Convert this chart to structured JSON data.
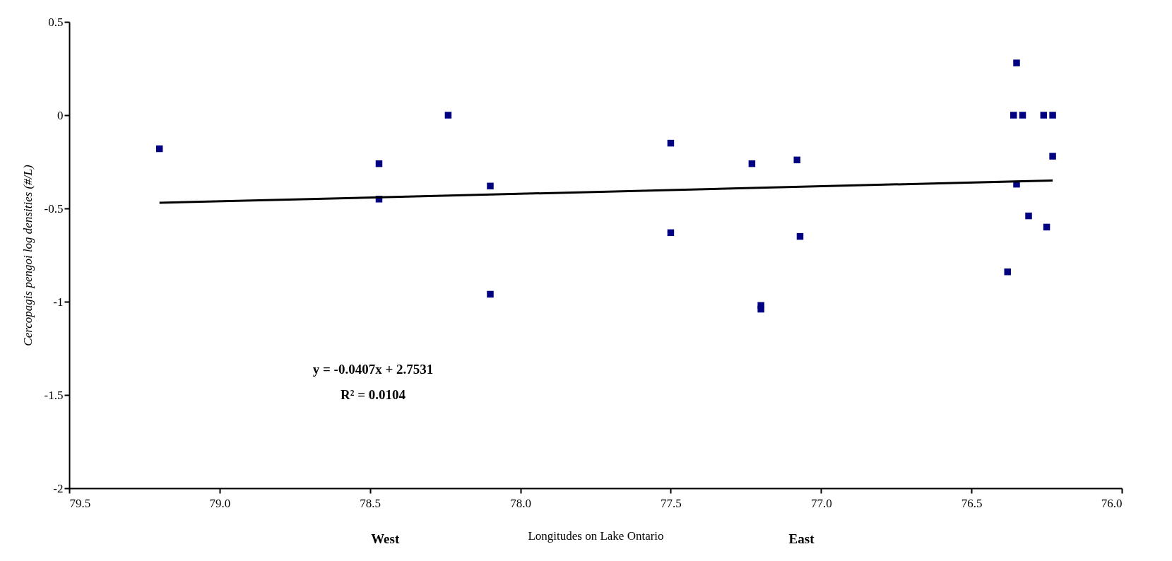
{
  "chart_data": {
    "type": "scatter",
    "xlabel": "Longitudes on Lake Ontario",
    "ylabel": "Cercopagis pengoi log densities (#/L)",
    "xlim": [
      79.5,
      76.0
    ],
    "xticks": [
      79.5,
      {
        "value": 79,
        "label": "79.0"
      },
      78.5,
      {
        "value": 78,
        "label": "78.0"
      },
      77.5,
      {
        "value": 77,
        "label": "77.0"
      },
      76.5,
      {
        "value": 76,
        "label": "76.0"
      }
    ],
    "ylim": [
      -2,
      0.5
    ],
    "yticks": [
      -2,
      -1.5,
      -1,
      -0.5,
      0,
      0.5
    ],
    "grid": false,
    "series": [
      {
        "marker": "square",
        "color": "#000080",
        "x": [
          79.2,
          78.47,
          78.47,
          78.24,
          78.1,
          78.1,
          77.5,
          77.5,
          77.23,
          77.2,
          77.2,
          77.08,
          77.07,
          76.35,
          76.38,
          76.36,
          76.33,
          76.31,
          76.35,
          76.26,
          76.25,
          76.23,
          76.23
        ],
        "values": [
          -0.18,
          -0.26,
          -0.45,
          0,
          -0.38,
          -0.96,
          -0.15,
          -0.63,
          -0.26,
          -1.02,
          -1.04,
          -0.24,
          -0.65,
          0.28,
          -0.84,
          0,
          0,
          -0.54,
          -0.37,
          0,
          -0.6,
          -0.22,
          0
        ]
      },
      {
        "type": "line",
        "color": "#000000",
        "line_style": "solid",
        "x": [
          79.2,
          76.23
        ],
        "values": [
          -0.47,
          -0.35
        ]
      }
    ],
    "annotations": [
      "y = -0.0407x + 2.7531",
      "R² = 0.0104",
      "West",
      "East"
    ]
  }
}
